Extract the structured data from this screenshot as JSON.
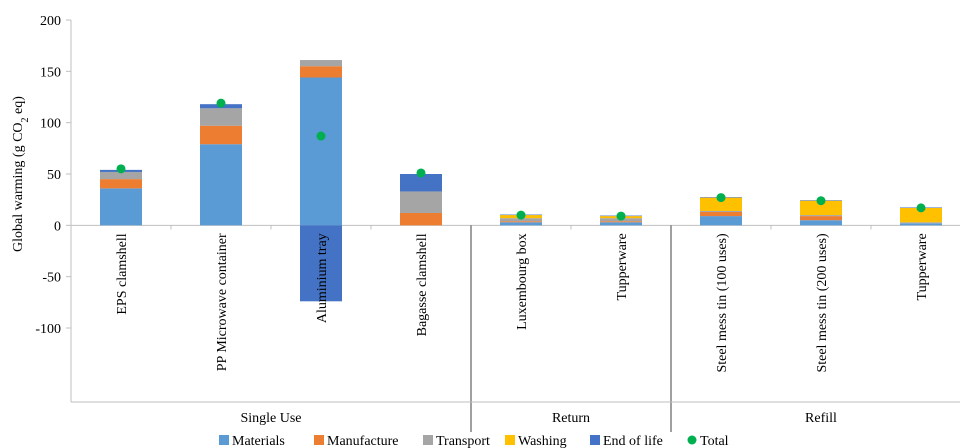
{
  "chart_data": {
    "type": "bar",
    "stacked": true,
    "ylabel": "Global warming (g CO",
    "ylabel_sub": "2",
    "ylabel_tail": " eq)",
    "ylim": [
      -100,
      200
    ],
    "yticks": [
      -100,
      -50,
      0,
      50,
      100,
      150,
      200
    ],
    "grid": false,
    "legend_position": "bottom",
    "categories": [
      "EPS clamshell",
      "PP Microwave container",
      "Aluminium tray",
      "Bagasse clamshell",
      "Luxembourg box",
      "Tupperware",
      "Steel mess tin (100 uses)",
      "Steel mess tin (200 uses)",
      "Tupperware"
    ],
    "groups": [
      {
        "name": "Single Use",
        "count": 4
      },
      {
        "name": "Return",
        "count": 2
      },
      {
        "name": "Refill",
        "count": 3
      }
    ],
    "series": [
      {
        "name": "Materials",
        "color": "#5b9bd5",
        "values": [
          36,
          79,
          144,
          0,
          3,
          3,
          9,
          5,
          2
        ]
      },
      {
        "name": "Manufacture",
        "color": "#ed7d31",
        "values": [
          9,
          18,
          11,
          12,
          1,
          1,
          4,
          4,
          0
        ]
      },
      {
        "name": "Transport",
        "color": "#a5a5a5",
        "values": [
          7,
          17,
          6,
          21,
          3,
          3,
          1,
          1,
          1
        ]
      },
      {
        "name": "Washing",
        "color": "#ffc000",
        "values": [
          0,
          0,
          0,
          0,
          3,
          2,
          13,
          14,
          14
        ]
      },
      {
        "name": "End of life",
        "color": "#4472c4",
        "values": [
          2,
          4,
          -74,
          17,
          0.5,
          0.5,
          0.5,
          0.5,
          0.5
        ]
      }
    ],
    "total": {
      "name": "Total",
      "color": "#00b050",
      "values": [
        55,
        119,
        87,
        51,
        10,
        9,
        27,
        24,
        17
      ]
    }
  }
}
